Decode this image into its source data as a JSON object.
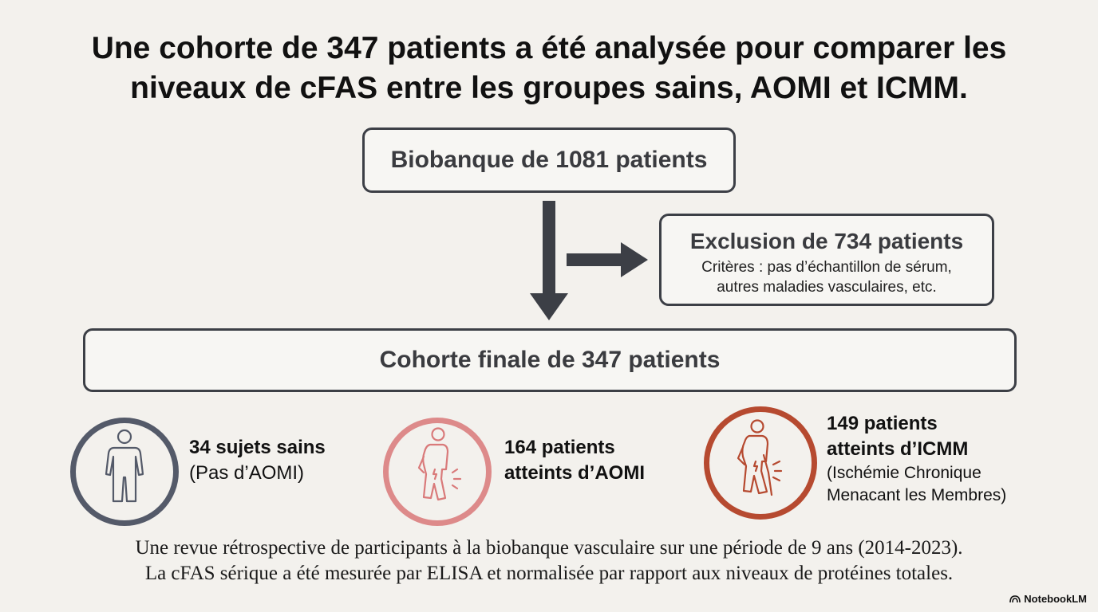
{
  "title": {
    "line1": "Une cohorte de 347 patients a été analysée pour comparer les",
    "line2": "niveaux de cFAS entre les groupes sains, AOMI et ICMM."
  },
  "flow": {
    "biobank": "Biobanque de 1081 patients",
    "exclusion": {
      "title": "Exclusion de 734 patients",
      "line1": "Critères : pas d’échantillon de sérum,",
      "line2": "autres maladies vasculaires, etc."
    },
    "cohort": "Cohorte finale de 347 patients"
  },
  "groups": [
    {
      "title": "34 sujets sains",
      "title2": "",
      "subtitle": "(Pas d’AOMI)",
      "subtitle2": "",
      "icon": "standing-person-icon",
      "color": "#545a69"
    },
    {
      "title": "164 patients",
      "title2": "atteints d’AOMI",
      "subtitle": "",
      "subtitle2": "",
      "icon": "person-leg-pain-icon",
      "color": "#dd8a8a"
    },
    {
      "title": "149 patients",
      "title2": "atteints d’ICMM",
      "subtitle": "(Ischémie Chronique",
      "subtitle2": "Menacant les Membres)",
      "icon": "person-leg-pain-cane-icon",
      "color": "#b64a30"
    }
  ],
  "footer": {
    "line1": "Une revue rétrospective de participants à la biobanque vasculaire sur une période de 9 ans (2014-2023).",
    "line2": "La cFAS sérique a été mesurée par ELISA et normalisée par rapport aux niveaux de protéines totales."
  },
  "brand": "NotebookLM",
  "colors": {
    "arrow": "#3c3f46",
    "box_border": "#3c3f46"
  }
}
